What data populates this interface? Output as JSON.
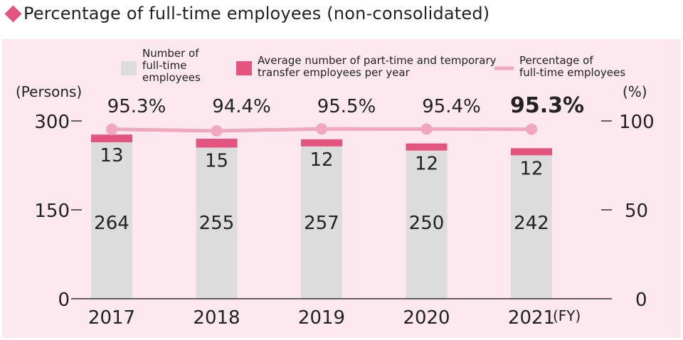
{
  "title": "Percentage of full-time employees (non-consolidated)",
  "colors": {
    "accent": "#e3557f",
    "full_time_bar": "#dcdcdc",
    "part_time_bar": "#e3557f",
    "percentage_line": "#f0a8be",
    "background": "#fce8ee"
  },
  "legend": {
    "full_time": "Number of full-time employees",
    "part_time": "Average number of part-time and temporary transfer employees per year",
    "percentage": "Percentage of full-time employees"
  },
  "chart_data": {
    "type": "bar",
    "title": "Percentage of full-time employees (non-consolidated)",
    "categories": [
      "2017",
      "2018",
      "2019",
      "2020",
      "2021"
    ],
    "x_unit": "(FY)",
    "y_left_unit": "(Persons)",
    "y_right_unit": "(%)",
    "y_left_ticks": [
      "0",
      "150",
      "300"
    ],
    "y_right_ticks": [
      "0",
      "50",
      "100"
    ],
    "ylim": [
      0,
      300
    ],
    "y2lim": [
      0,
      100
    ],
    "series": [
      {
        "name": "Number of full-time employees",
        "type": "bar",
        "values": [
          264,
          255,
          257,
          250,
          242
        ],
        "labels": [
          "264",
          "255",
          "257",
          "250",
          "242"
        ]
      },
      {
        "name": "Average number of part-time and temporary transfer employees per year",
        "type": "bar",
        "values": [
          13,
          15,
          12,
          12,
          12
        ],
        "labels": [
          "13",
          "15",
          "12",
          "12",
          "12"
        ]
      },
      {
        "name": "Percentage of full-time employees",
        "type": "line",
        "axis": "right",
        "values": [
          95.3,
          94.4,
          95.5,
          95.4,
          95.3
        ],
        "labels": [
          "95.3%",
          "94.4%",
          "95.5%",
          "95.4%",
          "95.3%"
        ]
      }
    ],
    "highlight_index": 4,
    "stacked": true,
    "grid": false,
    "legend_position": "top"
  }
}
